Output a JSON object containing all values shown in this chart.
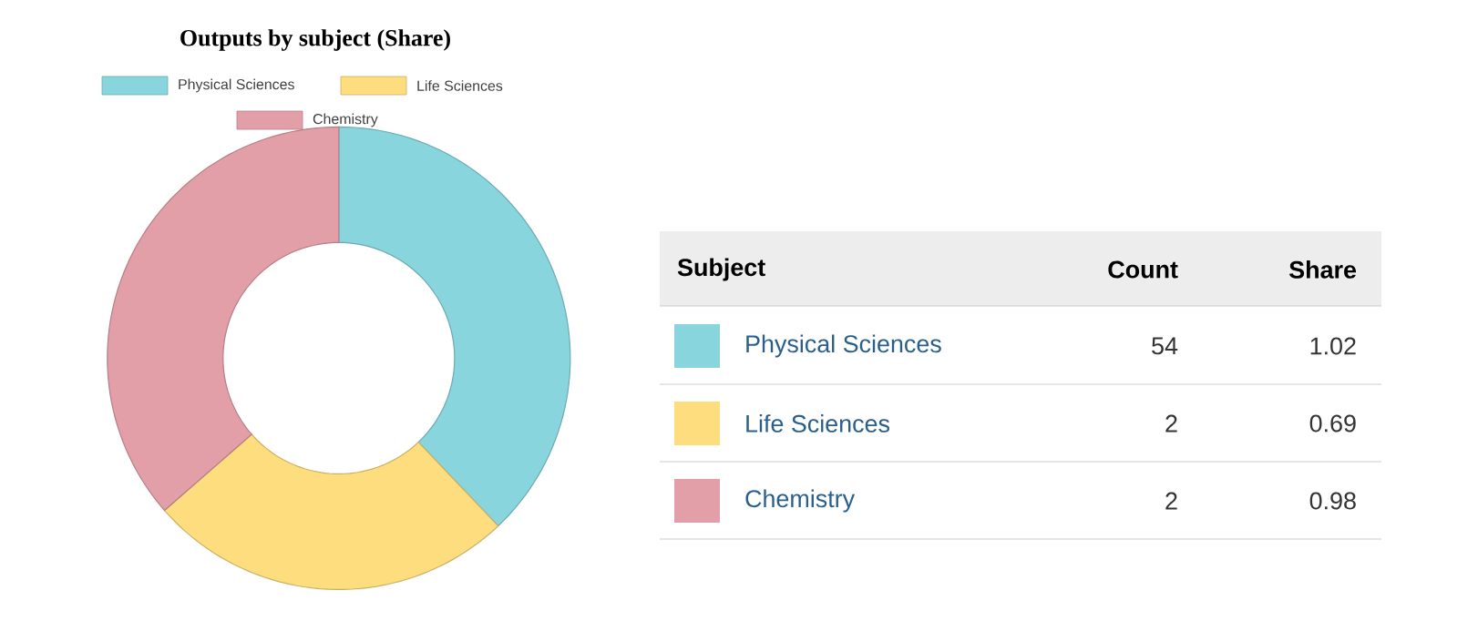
{
  "chart_data": [
    {
      "type": "donut",
      "title": "Outputs by subject (Share)",
      "categories": [
        "Physical Sciences",
        "Life Sciences",
        "Chemistry"
      ],
      "values": [
        37.92,
        25.65,
        36.43
      ],
      "colors": [
        "#88d5de",
        "#fedd7e",
        "#e39fa8"
      ],
      "legend": "top"
    },
    {
      "type": "other",
      "xlabel": "Subject",
      "categories": [
        "Physical Sciences",
        "Life Sciences",
        "Chemistry"
      ],
      "colors": [
        "#88d5de",
        "#fedd7e",
        "#e39fa8"
      ],
      "data_labels": true,
      "series": [
        {
          "name": "Count",
          "values": [
            54,
            2,
            2
          ]
        },
        {
          "name": "Share",
          "values": [
            1.02,
            0.69,
            0.98
          ]
        }
      ]
    }
  ]
}
